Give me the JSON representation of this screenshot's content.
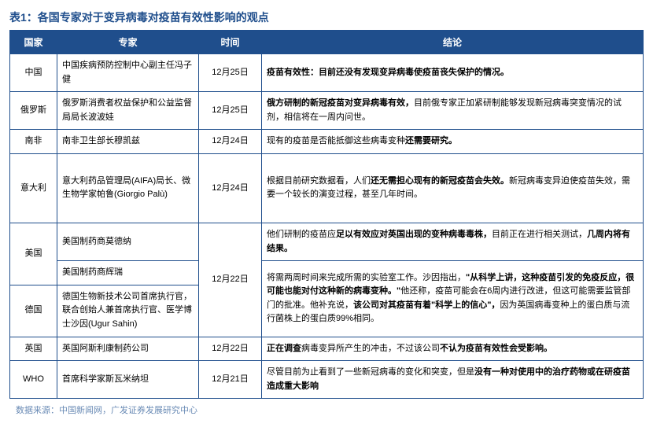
{
  "title": "表1：各国专家对于变异病毒对疫苗有效性影响的观点",
  "headers": {
    "country": "国家",
    "expert": "专家",
    "time": "时间",
    "conclusion": "结论"
  },
  "rows": {
    "china": {
      "country": "中国",
      "expert": "中国疾病预防控制中心副主任冯子健",
      "time": "12月25日",
      "bold1": "疫苗有效性：目前还没有发现变异病毒使疫苗丧失保护的情况。"
    },
    "russia": {
      "country": "俄罗斯",
      "expert": "俄罗斯消费者权益保护和公益监督局局长波波娃",
      "time": "12月25日",
      "bold1": "俄方研制的新冠疫苗对变异病毒有效，",
      "text1": "目前俄专家正加紧研制能够发现新冠病毒突变情况的试剂，相信将在一周内问世。"
    },
    "safrica": {
      "country": "南非",
      "expert": "南非卫生部长穆凯兹",
      "time": "12月24日",
      "text1": "现有的疫苗是否能抵御这些病毒变种",
      "bold1": "还需要研究。"
    },
    "italy": {
      "country": "意大利",
      "expert": "意大利药品管理局(AIFA)局长、微生物学家帕鲁(Giorgio Palù)",
      "time": "12月24日",
      "text1": "根据目前研究数据看，人们",
      "bold1": "还无需担心现有的新冠疫苗会失效。",
      "text2": "新冠病毒变异迫使疫苗失效，需要一个较长的演变过程，甚至几年时间。"
    },
    "usa": {
      "country": "美国",
      "expert1": "美国制药商莫德纳",
      "expert2": "美国制药商辉瑞",
      "time": "12月22日",
      "text1": "他们研制的疫苗应",
      "bold1": "足以有效应对英国出现的变种病毒毒株，",
      "text2": "目前正在进行相关测试，",
      "bold2": "几周内将有结果。"
    },
    "germany": {
      "country": "德国",
      "expert": "德国生物新技术公司首席执行官，联合创始人兼首席执行官、医学博士沙因(Ugur Sahin)",
      "text1": "将需两周时间来完成所需的实验室工作。沙因指出，",
      "bold1": "\"从科学上讲，这种疫苗引发的免疫反应，很可能也能对付这种新的病毒变种。\"",
      "text2": "他还称，疫苗可能会在6周内进行改进，但这可能需要监管部门的批准。他补充说，",
      "bold2": "该公司对其疫苗有着\"科学上的信心\"，",
      "text3": "因为英国病毒变种上的蛋白质与流行菌株上的蛋白质99%相同。"
    },
    "uk": {
      "country": "英国",
      "expert": "英国阿斯利康制药公司",
      "time": "12月22日",
      "bold1": "正在调查",
      "text1": "病毒变异所产生的冲击，不过该公司",
      "bold2": "不认为疫苗有效性会受影响。"
    },
    "who": {
      "country": "WHO",
      "expert": "首席科学家斯瓦米纳坦",
      "time": "12月21日",
      "text1": "尽管目前为止看到了一些新冠病毒的变化和突变，但是",
      "bold1": "没有一种对使用中的治疗药物或在研疫苗造成重大影响"
    }
  },
  "source": "数据来源：中国新闻网，广发证券发展研究中心"
}
